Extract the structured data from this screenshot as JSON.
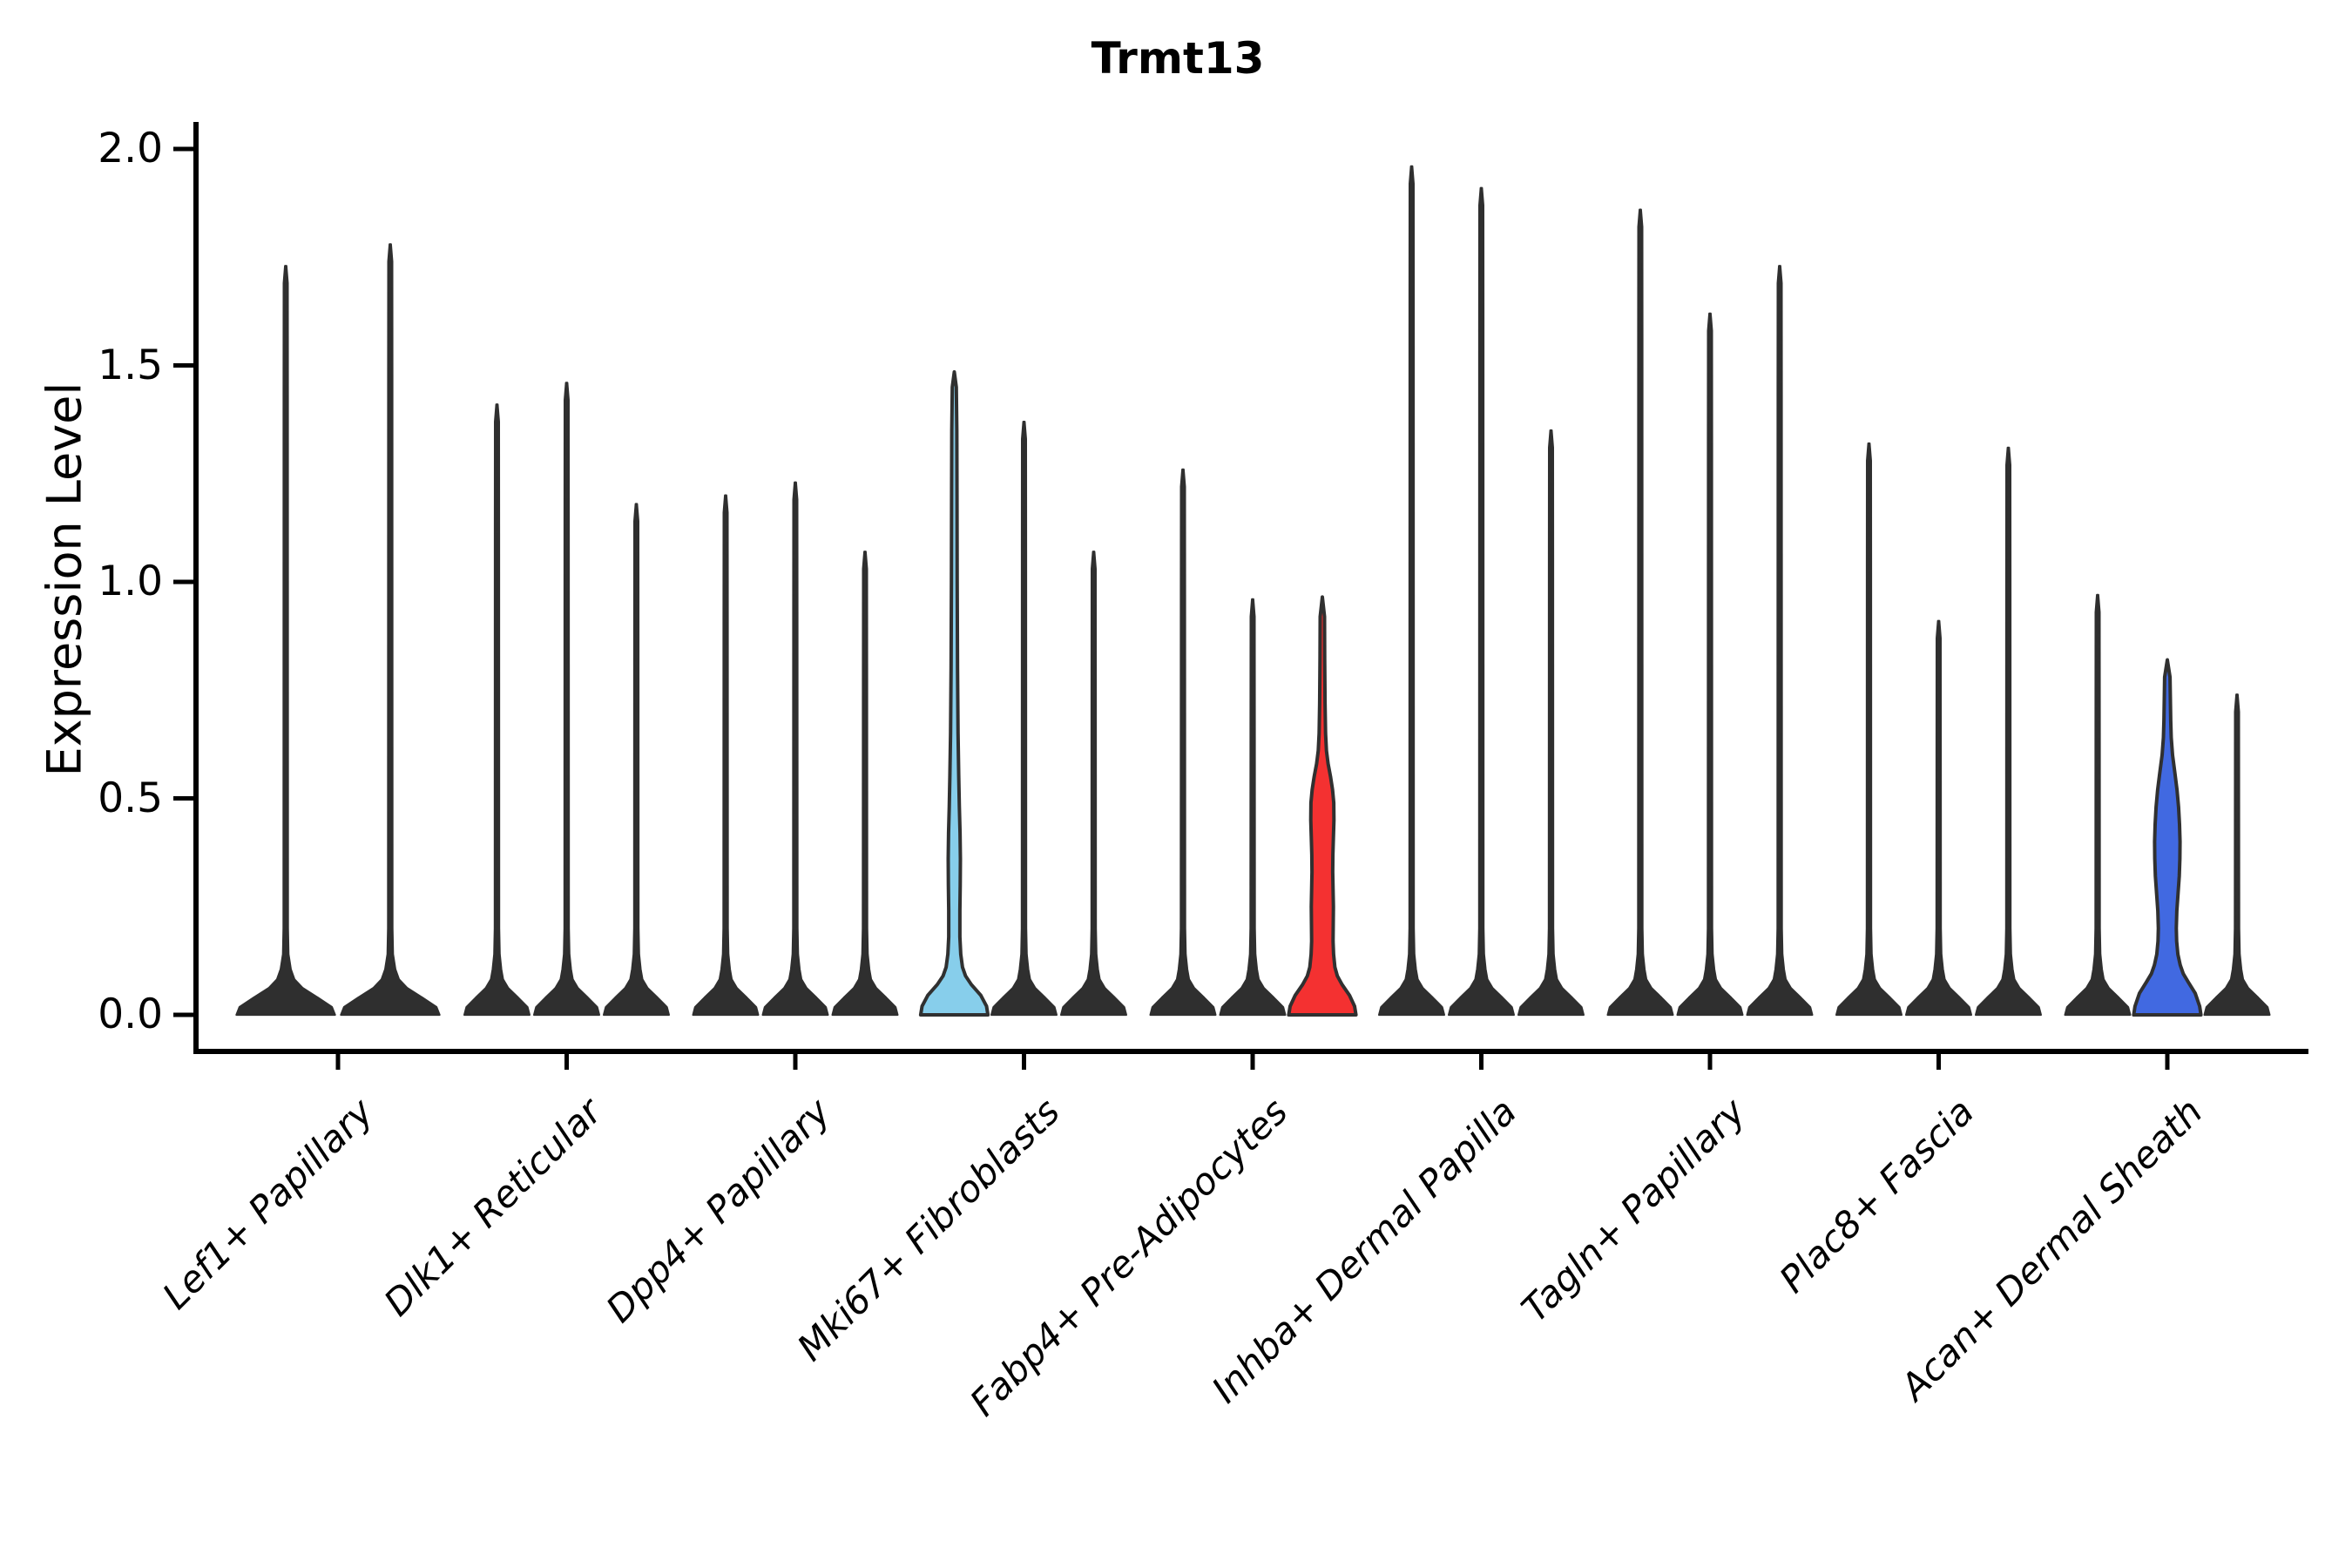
{
  "title": "Trmt13",
  "y_axis": {
    "label": "Expression Level",
    "tick_labels": [
      "2.0",
      "1.5",
      "1.0",
      "0.5",
      "0.0"
    ]
  },
  "chart_data": {
    "type": "violin",
    "title": "Trmt13",
    "xlabel": "",
    "ylabel": "Expression Level",
    "ylim": [
      -0.09,
      2.06
    ],
    "yticks": [
      0.0,
      0.5,
      1.0,
      1.5,
      2.0
    ],
    "grid": false,
    "legend": "none",
    "categories": [
      "Lef1+ Papillary",
      "Dlk1+ Reticular",
      "Dpp4+ Papillary",
      "Mki67+ Fibroblasts",
      "Fabp4+ Pre-Adipocytes",
      "Inhba+ Dermal Papilla",
      "Tagln+ Papillary",
      "Plac8+ Fascia",
      "Acan+ Dermal Sheath"
    ],
    "colors": {
      "default_violin": "#2f2f2f",
      "outline": "#303030",
      "highlight_skyblue": "#87CEEB",
      "highlight_red": "#F43131",
      "highlight_royalblue": "#4169E1",
      "axis": "#000000",
      "background": "#ffffff"
    },
    "groups": [
      {
        "category": "Lef1+ Papillary",
        "violins": [
          {
            "max": 1.73
          },
          {
            "max": 1.78
          }
        ]
      },
      {
        "category": "Dlk1+ Reticular",
        "violins": [
          {
            "max": 1.41
          },
          {
            "max": 1.46
          },
          {
            "max": 1.18
          }
        ]
      },
      {
        "category": "Dpp4+ Papillary",
        "violins": [
          {
            "max": 1.2
          },
          {
            "max": 1.23
          },
          {
            "max": 1.07
          }
        ]
      },
      {
        "category": "Mki67+ Fibroblasts",
        "violins": [
          {
            "max": 1.48,
            "color": "#87CEEB",
            "profile": [
              [
                0,
                0.99
              ],
              [
                0.02,
                0.95
              ],
              [
                0.045,
                0.78
              ],
              [
                0.07,
                0.5
              ],
              [
                0.09,
                0.33
              ],
              [
                0.11,
                0.24
              ],
              [
                0.14,
                0.19
              ],
              [
                0.18,
                0.165
              ],
              [
                0.24,
                0.165
              ],
              [
                0.3,
                0.175
              ],
              [
                0.36,
                0.18
              ],
              [
                0.42,
                0.17
              ],
              [
                0.48,
                0.15
              ],
              [
                0.55,
                0.13
              ],
              [
                0.65,
                0.11
              ],
              [
                0.8,
                0.095
              ],
              [
                1.0,
                0.085
              ],
              [
                1.2,
                0.08
              ],
              [
                1.35,
                0.075
              ],
              [
                1.45,
                0.06
              ],
              [
                1.485,
                0
              ]
            ]
          },
          {
            "max": 1.37
          },
          {
            "max": 1.07
          }
        ]
      },
      {
        "category": "Fabp4+ Pre-Adipocytes",
        "violins": [
          {
            "max": 1.26
          },
          {
            "max": 0.96
          },
          {
            "max": 0.97,
            "color": "#F43131",
            "profile": [
              [
                0,
                0.99
              ],
              [
                0.02,
                0.95
              ],
              [
                0.045,
                0.8
              ],
              [
                0.07,
                0.58
              ],
              [
                0.09,
                0.44
              ],
              [
                0.11,
                0.37
              ],
              [
                0.14,
                0.33
              ],
              [
                0.17,
                0.315
              ],
              [
                0.21,
                0.32
              ],
              [
                0.25,
                0.325
              ],
              [
                0.29,
                0.315
              ],
              [
                0.33,
                0.305
              ],
              [
                0.37,
                0.31
              ],
              [
                0.41,
                0.325
              ],
              [
                0.45,
                0.34
              ],
              [
                0.49,
                0.335
              ],
              [
                0.52,
                0.3
              ],
              [
                0.55,
                0.24
              ],
              [
                0.58,
                0.17
              ],
              [
                0.61,
                0.12
              ],
              [
                0.65,
                0.095
              ],
              [
                0.72,
                0.08
              ],
              [
                0.82,
                0.07
              ],
              [
                0.92,
                0.065
              ],
              [
                0.965,
                0
              ]
            ]
          }
        ]
      },
      {
        "category": "Inhba+ Dermal Papilla",
        "violins": [
          {
            "max": 1.96
          },
          {
            "max": 1.91
          },
          {
            "max": 1.35
          }
        ]
      },
      {
        "category": "Tagln+ Papillary",
        "violins": [
          {
            "max": 1.86
          },
          {
            "max": 1.62
          },
          {
            "max": 1.73
          }
        ]
      },
      {
        "category": "Plac8+ Fascia",
        "violins": [
          {
            "max": 1.32
          },
          {
            "max": 0.91
          },
          {
            "max": 1.31
          }
        ]
      },
      {
        "category": "Acan+ Dermal Sheath",
        "violins": [
          {
            "max": 0.97
          },
          {
            "max": 0.82,
            "color": "#4169E1",
            "profile": [
              [
                0,
                0.99
              ],
              [
                0.02,
                0.95
              ],
              [
                0.05,
                0.82
              ],
              [
                0.075,
                0.62
              ],
              [
                0.095,
                0.47
              ],
              [
                0.115,
                0.38
              ],
              [
                0.14,
                0.31
              ],
              [
                0.17,
                0.275
              ],
              [
                0.2,
                0.265
              ],
              [
                0.24,
                0.28
              ],
              [
                0.28,
                0.315
              ],
              [
                0.32,
                0.35
              ],
              [
                0.36,
                0.37
              ],
              [
                0.4,
                0.375
              ],
              [
                0.44,
                0.36
              ],
              [
                0.48,
                0.33
              ],
              [
                0.52,
                0.285
              ],
              [
                0.56,
                0.22
              ],
              [
                0.6,
                0.155
              ],
              [
                0.64,
                0.115
              ],
              [
                0.68,
                0.1
              ],
              [
                0.73,
                0.09
              ],
              [
                0.78,
                0.08
              ],
              [
                0.82,
                0
              ]
            ]
          },
          {
            "max": 0.74
          }
        ]
      }
    ]
  }
}
